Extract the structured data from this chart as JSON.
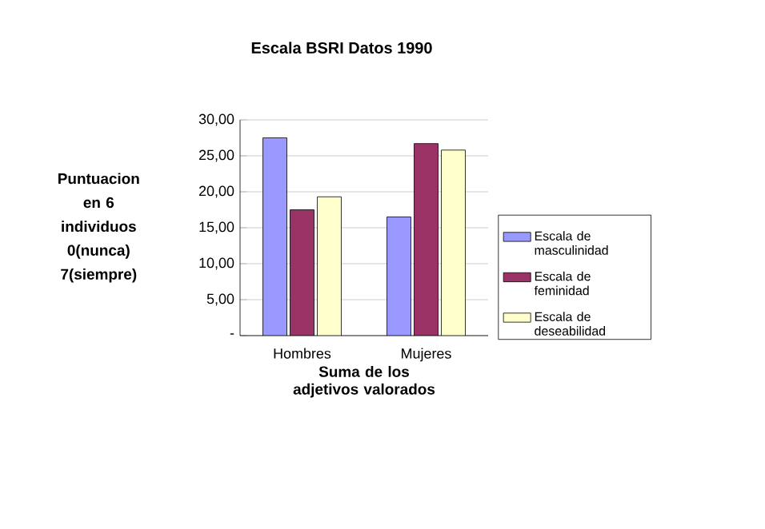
{
  "chart_data": {
    "type": "bar",
    "title": "Escala BSRI Datos 1990",
    "xlabel": "Suma de los adjetivos valorados",
    "ylabel": "Puntuacion en 6 individuos 0(nunca) 7(siempre)",
    "categories": [
      "Hombres",
      "Mujeres"
    ],
    "series": [
      {
        "name": "Escala de masculinidad",
        "color": "#9999ff",
        "values": [
          27.5,
          16.5
        ]
      },
      {
        "name": "Escala de feminidad",
        "color": "#993366",
        "values": [
          17.5,
          26.7
        ]
      },
      {
        "name": "Escala de deseabilidad",
        "color": "#ffffcc",
        "values": [
          19.3,
          25.8
        ]
      }
    ],
    "ylim": [
      0,
      30
    ],
    "yticks": [
      {
        "value": 0,
        "label": "-"
      },
      {
        "value": 5,
        "label": "5,00"
      },
      {
        "value": 10,
        "label": "10,00"
      },
      {
        "value": 15,
        "label": "15,00"
      },
      {
        "value": 20,
        "label": "20,00"
      },
      {
        "value": 25,
        "label": "25,00"
      },
      {
        "value": 30,
        "label": "30,00"
      }
    ],
    "grid": "y",
    "legend": "right"
  }
}
